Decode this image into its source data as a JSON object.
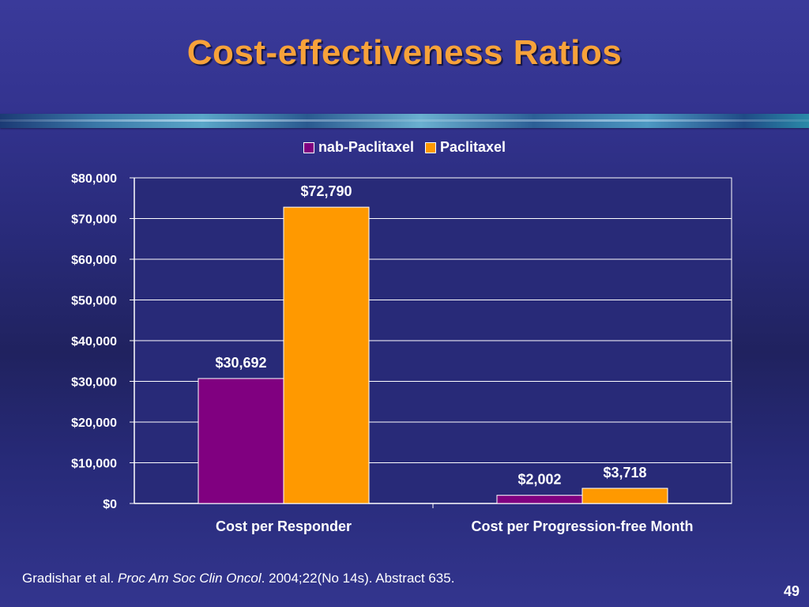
{
  "slide": {
    "title": "Cost-effectiveness Ratios",
    "page_number": "49"
  },
  "citation": {
    "authors": "Gradishar et al. ",
    "journal": "Proc Am Soc Clin Oncol",
    "details": ". 2004;22(No 14s). Abstract 635."
  },
  "colors": {
    "title": "#f7a23a",
    "nab_paclitaxel": "#800080",
    "paclitaxel": "#ff9900",
    "grid": "#ffffff",
    "plot_background": "#282a78"
  },
  "chart_data": {
    "type": "bar",
    "categories": [
      "Cost per Responder",
      "Cost per Progression-free Month"
    ],
    "series": [
      {
        "name": "nab-Paclitaxel",
        "values": [
          30692,
          2002
        ],
        "labels": [
          "$30,692",
          "$2,002"
        ],
        "color": "#800080"
      },
      {
        "name": "Paclitaxel",
        "values": [
          72790,
          3718
        ],
        "labels": [
          "$72,790",
          "$3,718"
        ],
        "color": "#ff9900"
      }
    ],
    "ylim": [
      0,
      80000
    ],
    "yticks": [
      0,
      10000,
      20000,
      30000,
      40000,
      50000,
      60000,
      70000,
      80000
    ],
    "ytick_labels": [
      "$0",
      "$10,000",
      "$20,000",
      "$30,000",
      "$40,000",
      "$50,000",
      "$60,000",
      "$70,000",
      "$80,000"
    ],
    "grid": true,
    "legend_position": "top"
  }
}
